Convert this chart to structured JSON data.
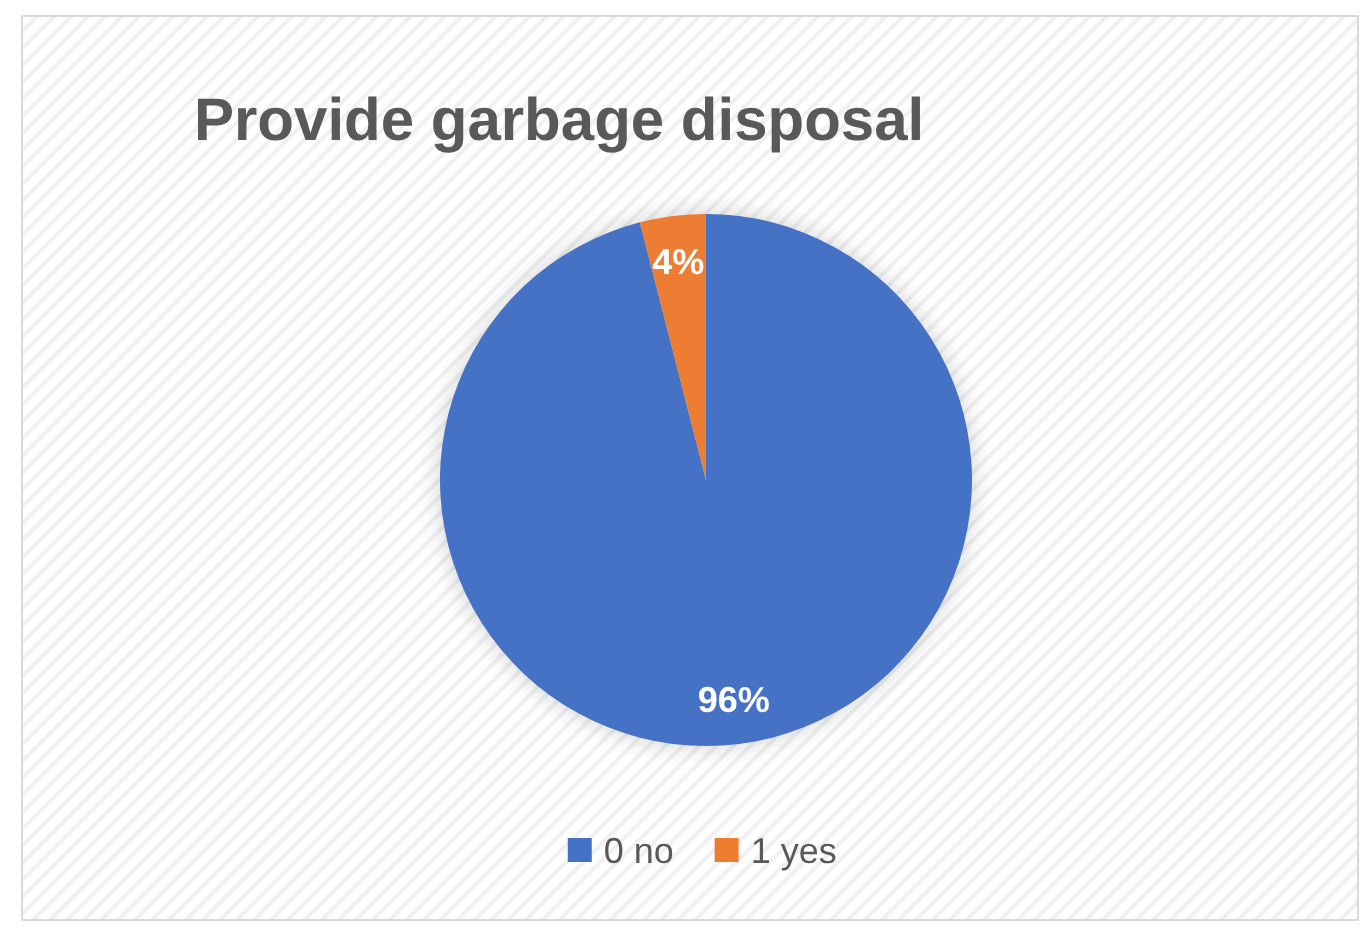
{
  "chart_data": {
    "type": "pie",
    "title": "Provide garbage disposal",
    "categories": [
      "0 no",
      "1 yes"
    ],
    "values": [
      96,
      4
    ],
    "colors": [
      "#4472c4",
      "#ed7d31"
    ],
    "value_labels": [
      "96%",
      "4%"
    ],
    "legend": "bottom"
  }
}
